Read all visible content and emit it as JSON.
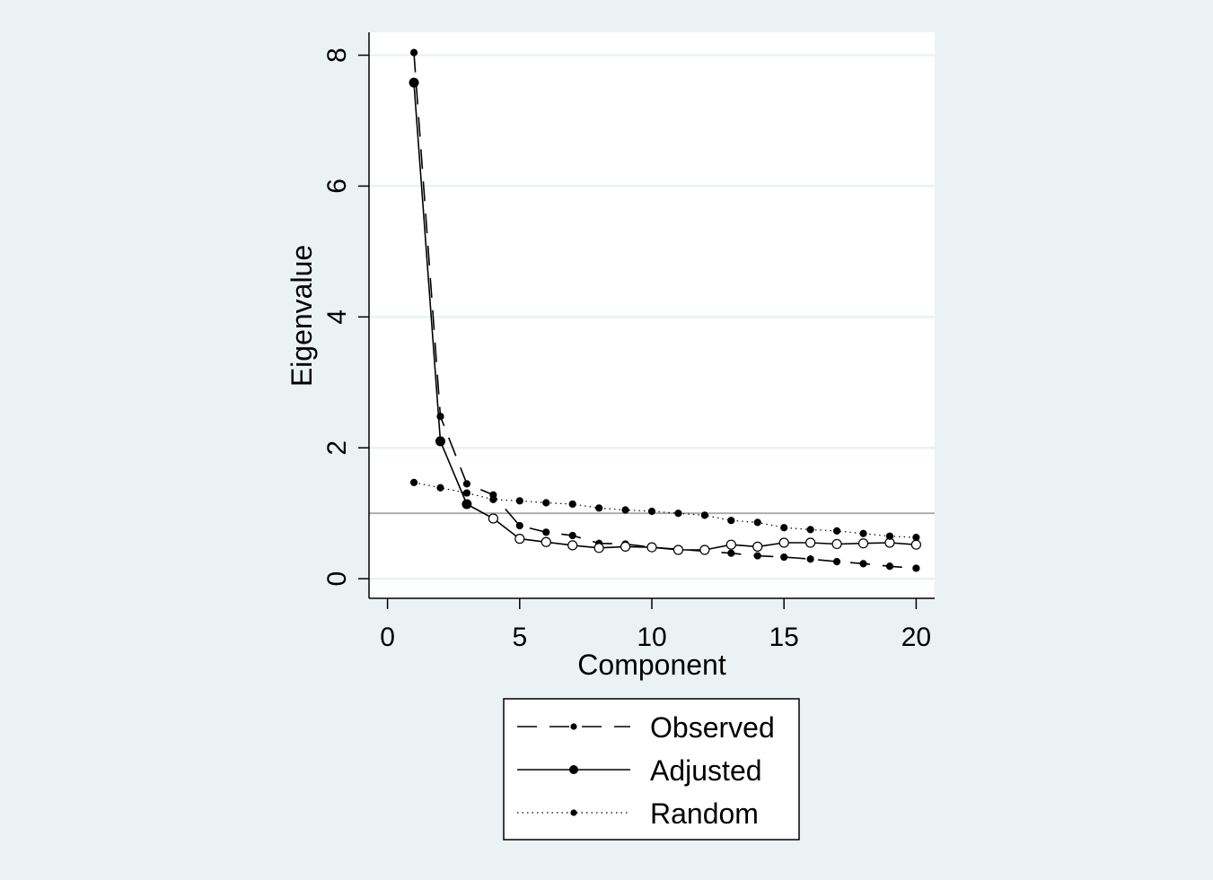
{
  "chart_data": {
    "type": "line",
    "xlabel": "Component",
    "ylabel": "Eigenvalue",
    "xlim": [
      -0.7,
      20.7
    ],
    "ylim": [
      -0.3,
      8.35
    ],
    "xticks": [
      "0",
      "5",
      "10",
      "15",
      "20"
    ],
    "yticks": [
      "0",
      "2",
      "4",
      "6",
      "8"
    ],
    "grid": true,
    "reference_line_y": 1,
    "legend_position": "bottom",
    "x": [
      1,
      2,
      3,
      4,
      5,
      6,
      7,
      8,
      9,
      10,
      11,
      12,
      13,
      14,
      15,
      16,
      17,
      18,
      19,
      20
    ],
    "series": [
      {
        "name": "Observed",
        "style": "dashed",
        "values": [
          8.04,
          2.48,
          1.45,
          1.28,
          0.81,
          0.71,
          0.66,
          0.54,
          0.53,
          0.48,
          0.45,
          0.42,
          0.39,
          0.35,
          0.33,
          0.3,
          0.26,
          0.23,
          0.19,
          0.16
        ]
      },
      {
        "name": "Adjusted",
        "style": "solid",
        "values": [
          7.58,
          2.1,
          1.14,
          0.92,
          0.61,
          0.56,
          0.51,
          0.47,
          0.49,
          0.48,
          0.44,
          0.44,
          0.52,
          0.49,
          0.55,
          0.55,
          0.53,
          0.54,
          0.55,
          0.52
        ]
      },
      {
        "name": "Random",
        "style": "dotted",
        "values": [
          1.47,
          1.39,
          1.31,
          1.21,
          1.19,
          1.16,
          1.14,
          1.08,
          1.05,
          1.03,
          1.0,
          0.97,
          0.89,
          0.86,
          0.78,
          0.75,
          0.73,
          0.69,
          0.65,
          0.63
        ]
      }
    ]
  },
  "colors": {
    "background": "#eaf2f3",
    "plot_background": "#ffffff",
    "grid": "#eaf2f3",
    "reference_line": "#a8a8a8",
    "series": "#000000"
  }
}
